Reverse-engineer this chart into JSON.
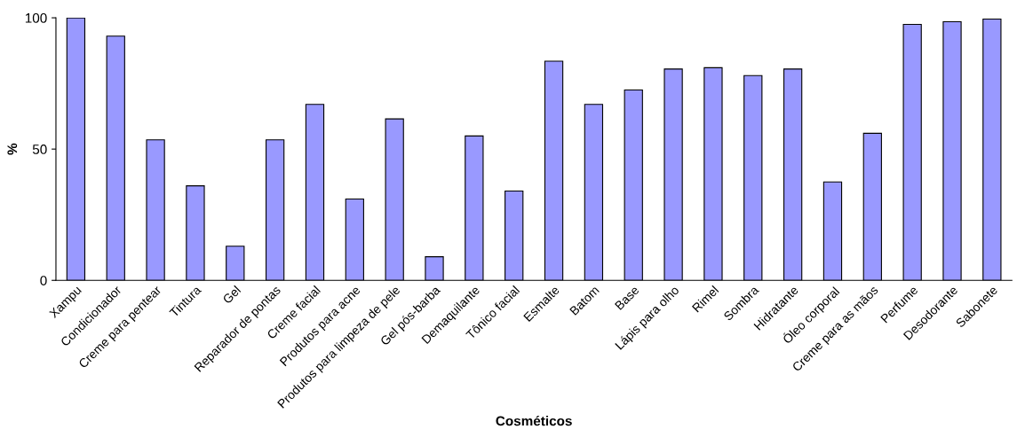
{
  "chart_data": {
    "type": "bar",
    "xlabel": "Cosméticos",
    "ylabel": "%",
    "categories": [
      "Xampu",
      "Condicionador",
      "Creme para pentear",
      "Tintura",
      "Gel",
      "Reparador de pontas",
      "Creme facial",
      "Produtos para acne",
      "Produtos para limpeza de pele",
      "Gel pós-barba",
      "Demaquilante",
      "Tônico facial",
      "Esmalte",
      "Batom",
      "Base",
      "Lápis para olho",
      "Rimel",
      "Sombra",
      "Hidratante",
      "Óleo corporal",
      "Creme para as mãos",
      "Perfume",
      "Desodorante",
      "Sabonete"
    ],
    "values": [
      100,
      93,
      53.5,
      36,
      13,
      53.5,
      67,
      31,
      61.5,
      9,
      55,
      34,
      83.5,
      67,
      72.5,
      80.5,
      81,
      78,
      80.5,
      37.5,
      56,
      97.5,
      98.5,
      99.5
    ],
    "color": "#9999ff",
    "ylim": [
      0,
      100
    ],
    "yticks": [
      0,
      50,
      100
    ],
    "grid": false,
    "legend": false
  }
}
